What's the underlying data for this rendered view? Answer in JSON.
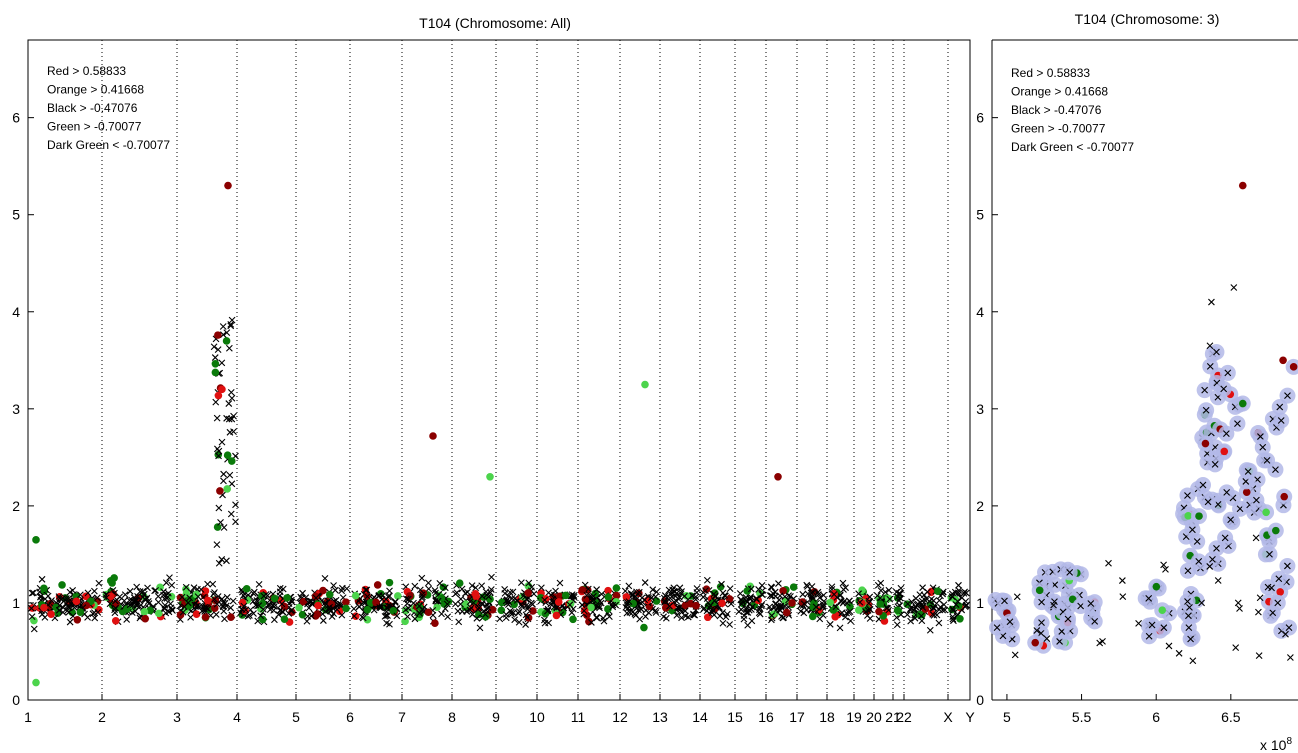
{
  "chart_data": [
    {
      "type": "scatter",
      "title": "T104 (Chromosome: All)",
      "xlabel": "",
      "ylabel": "",
      "ylim": [
        0,
        6.8
      ],
      "y_ticks": [
        "0",
        "1",
        "2",
        "3",
        "4",
        "5",
        "6"
      ],
      "x_tick_labels": [
        "1",
        "2",
        "3",
        "4",
        "5",
        "6",
        "7",
        "8",
        "9",
        "10",
        "11",
        "12",
        "13",
        "14",
        "15",
        "16",
        "17",
        "18",
        "19",
        "20",
        "21",
        "22",
        "X",
        "Y"
      ],
      "grid": "vertical dotted chromosome separators",
      "legend_placement": "top-left",
      "legend": [
        "Red > 0.58833",
        "Orange > 0.41668",
        "Black > -0.47076",
        "Green > -0.70077",
        "Dark Green < -0.70077"
      ],
      "highlights": [
        {
          "chrom": "4",
          "y": 5.3,
          "color": "#8b0000"
        },
        {
          "chrom": "13",
          "y": 3.25,
          "color": "#4cd44c"
        },
        {
          "chrom": "8",
          "y": 2.72,
          "color": "#8b0000"
        },
        {
          "chrom": "17",
          "y": 2.3,
          "color": "#8b0000"
        },
        {
          "chrom": "9",
          "y": 2.3,
          "color": "#4cd44c"
        },
        {
          "chrom": "1",
          "y": 1.65,
          "color": "#0a7a0a"
        },
        {
          "chrom": "1",
          "y": 0.18,
          "color": "#4cd44c"
        }
      ]
    },
    {
      "type": "scatter",
      "title": "T104 (Chromosome: 3)",
      "xlabel": "",
      "ylabel": "",
      "xlim": [
        4.9,
        6.95
      ],
      "ylim": [
        0,
        6.8
      ],
      "x_ticks": [
        "5",
        "5.5",
        "6",
        "6.5"
      ],
      "x_exponent": "x 10",
      "x_exponent_power": "8",
      "y_ticks": [
        "0",
        "1",
        "2",
        "3",
        "4",
        "5",
        "6"
      ],
      "legend_placement": "top-left",
      "legend": [
        "Red > 0.58833",
        "Orange > 0.41668",
        "Black > -0.47076",
        "Green > -0.70077",
        "Dark Green < -0.70077"
      ],
      "highlights": [
        {
          "x": 6.58,
          "y": 5.3,
          "color": "#8b0000"
        },
        {
          "x": 6.52,
          "y": 4.25,
          "color": "#000000"
        },
        {
          "x": 6.37,
          "y": 4.1,
          "color": "#000000"
        },
        {
          "x": 6.36,
          "y": 3.65,
          "color": "#000000"
        },
        {
          "x": 6.85,
          "y": 3.5,
          "color": "#8b0000"
        }
      ]
    }
  ]
}
